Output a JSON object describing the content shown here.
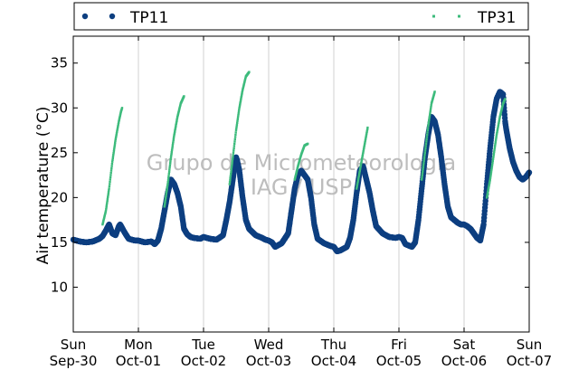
{
  "chart_data": {
    "type": "scatter",
    "title": "",
    "ylabel": "Air temperature (°C)",
    "xlabel": "",
    "xlim": [
      0,
      7
    ],
    "ylim": [
      5,
      38
    ],
    "yticks": [
      10,
      15,
      20,
      25,
      30,
      35
    ],
    "xticks": [
      {
        "x": 0,
        "day": "Sun",
        "date": "Sep-30"
      },
      {
        "x": 1,
        "day": "Mon",
        "date": "Oct-01"
      },
      {
        "x": 2,
        "day": "Tue",
        "date": "Oct-02"
      },
      {
        "x": 3,
        "day": "Wed",
        "date": "Oct-03"
      },
      {
        "x": 4,
        "day": "Thu",
        "date": "Oct-04"
      },
      {
        "x": 5,
        "day": "Fri",
        "date": "Oct-05"
      },
      {
        "x": 6,
        "day": "Sat",
        "date": "Oct-06"
      },
      {
        "x": 7,
        "day": "Sun",
        "date": "Oct-07"
      }
    ],
    "grid": "vertical",
    "legend_position": "top",
    "watermark": [
      "Grupo de Micrometeorologia",
      "IAG / USP"
    ],
    "series": [
      {
        "name": "TP11",
        "color": "#0d3f80",
        "marker": "circle",
        "points": [
          [
            0.0,
            15.3
          ],
          [
            0.1,
            15.1
          ],
          [
            0.2,
            15.0
          ],
          [
            0.3,
            15.1
          ],
          [
            0.4,
            15.4
          ],
          [
            0.45,
            15.7
          ],
          [
            0.5,
            16.3
          ],
          [
            0.55,
            17.0
          ],
          [
            0.6,
            16.0
          ],
          [
            0.65,
            15.8
          ],
          [
            0.7,
            16.8
          ],
          [
            0.72,
            17.0
          ],
          [
            0.78,
            16.2
          ],
          [
            0.85,
            15.4
          ],
          [
            0.95,
            15.2
          ],
          [
            1.0,
            15.2
          ],
          [
            1.1,
            15.0
          ],
          [
            1.2,
            15.1
          ],
          [
            1.25,
            14.8
          ],
          [
            1.3,
            15.2
          ],
          [
            1.35,
            16.5
          ],
          [
            1.4,
            18.5
          ],
          [
            1.45,
            20.5
          ],
          [
            1.5,
            22.0
          ],
          [
            1.55,
            21.5
          ],
          [
            1.6,
            20.5
          ],
          [
            1.65,
            19.0
          ],
          [
            1.7,
            16.5
          ],
          [
            1.75,
            15.9
          ],
          [
            1.8,
            15.6
          ],
          [
            1.85,
            15.5
          ],
          [
            1.95,
            15.4
          ],
          [
            2.0,
            15.6
          ],
          [
            2.1,
            15.4
          ],
          [
            2.2,
            15.3
          ],
          [
            2.3,
            15.8
          ],
          [
            2.35,
            17.5
          ],
          [
            2.4,
            19.5
          ],
          [
            2.45,
            22.0
          ],
          [
            2.5,
            24.5
          ],
          [
            2.52,
            24.0
          ],
          [
            2.55,
            23.0
          ],
          [
            2.6,
            20.0
          ],
          [
            2.65,
            17.5
          ],
          [
            2.7,
            16.5
          ],
          [
            2.8,
            15.8
          ],
          [
            2.9,
            15.5
          ],
          [
            2.95,
            15.3
          ],
          [
            3.0,
            15.2
          ],
          [
            3.05,
            15.0
          ],
          [
            3.1,
            14.5
          ],
          [
            3.2,
            14.9
          ],
          [
            3.3,
            16.0
          ],
          [
            3.35,
            18.5
          ],
          [
            3.4,
            21.0
          ],
          [
            3.45,
            22.5
          ],
          [
            3.5,
            23.0
          ],
          [
            3.55,
            22.5
          ],
          [
            3.6,
            22.0
          ],
          [
            3.65,
            20.0
          ],
          [
            3.7,
            17.0
          ],
          [
            3.75,
            15.4
          ],
          [
            3.85,
            14.9
          ],
          [
            3.95,
            14.6
          ],
          [
            4.0,
            14.5
          ],
          [
            4.05,
            14.0
          ],
          [
            4.1,
            14.1
          ],
          [
            4.2,
            14.5
          ],
          [
            4.25,
            15.5
          ],
          [
            4.3,
            17.5
          ],
          [
            4.35,
            20.5
          ],
          [
            4.4,
            23.0
          ],
          [
            4.45,
            23.5
          ],
          [
            4.5,
            22.0
          ],
          [
            4.55,
            20.5
          ],
          [
            4.6,
            18.5
          ],
          [
            4.65,
            16.8
          ],
          [
            4.75,
            16.0
          ],
          [
            4.85,
            15.6
          ],
          [
            4.95,
            15.5
          ],
          [
            5.0,
            15.6
          ],
          [
            5.05,
            15.5
          ],
          [
            5.1,
            14.8
          ],
          [
            5.2,
            14.5
          ],
          [
            5.25,
            15.0
          ],
          [
            5.3,
            17.5
          ],
          [
            5.35,
            21.0
          ],
          [
            5.4,
            24.5
          ],
          [
            5.45,
            27.0
          ],
          [
            5.5,
            29.0
          ],
          [
            5.55,
            28.5
          ],
          [
            5.6,
            27.0
          ],
          [
            5.65,
            24.5
          ],
          [
            5.7,
            21.5
          ],
          [
            5.75,
            19.0
          ],
          [
            5.8,
            17.8
          ],
          [
            5.9,
            17.2
          ],
          [
            5.95,
            17.0
          ],
          [
            6.0,
            17.0
          ],
          [
            6.05,
            16.8
          ],
          [
            6.1,
            16.5
          ],
          [
            6.2,
            15.5
          ],
          [
            6.25,
            15.2
          ],
          [
            6.3,
            17.0
          ],
          [
            6.35,
            21.5
          ],
          [
            6.4,
            25.5
          ],
          [
            6.45,
            29.0
          ],
          [
            6.5,
            31.0
          ],
          [
            6.55,
            31.8
          ],
          [
            6.6,
            31.5
          ],
          [
            6.63,
            28.5
          ],
          [
            6.65,
            27.5
          ],
          [
            6.7,
            25.5
          ],
          [
            6.75,
            24.0
          ],
          [
            6.8,
            23.0
          ],
          [
            6.85,
            22.3
          ],
          [
            6.9,
            22.0
          ],
          [
            6.95,
            22.3
          ],
          [
            7.0,
            22.8
          ]
        ]
      },
      {
        "name": "TP31",
        "color": "#3dbb7c",
        "marker": "point",
        "points": [
          [
            0.45,
            17.0
          ],
          [
            0.5,
            18.5
          ],
          [
            0.55,
            21.0
          ],
          [
            0.6,
            24.0
          ],
          [
            0.65,
            26.5
          ],
          [
            0.7,
            28.5
          ],
          [
            0.73,
            29.5
          ],
          [
            0.75,
            30.0
          ],
          [
            1.4,
            19.0
          ],
          [
            1.45,
            21.5
          ],
          [
            1.5,
            24.5
          ],
          [
            1.55,
            27.0
          ],
          [
            1.6,
            29.0
          ],
          [
            1.65,
            30.5
          ],
          [
            1.7,
            31.3
          ],
          [
            2.4,
            21.5
          ],
          [
            2.45,
            24.5
          ],
          [
            2.5,
            27.5
          ],
          [
            2.55,
            30.0
          ],
          [
            2.6,
            32.0
          ],
          [
            2.65,
            33.5
          ],
          [
            2.7,
            34.0
          ],
          [
            3.4,
            22.0
          ],
          [
            3.45,
            23.5
          ],
          [
            3.5,
            24.8
          ],
          [
            3.55,
            25.8
          ],
          [
            3.6,
            26.0
          ],
          [
            4.35,
            21.0
          ],
          [
            4.4,
            23.0
          ],
          [
            4.45,
            25.0
          ],
          [
            4.5,
            27.0
          ],
          [
            4.52,
            27.8
          ],
          [
            5.35,
            22.0
          ],
          [
            5.4,
            25.0
          ],
          [
            5.45,
            28.0
          ],
          [
            5.5,
            30.5
          ],
          [
            5.55,
            31.8
          ],
          [
            6.35,
            20.0
          ],
          [
            6.4,
            22.0
          ],
          [
            6.45,
            24.5
          ],
          [
            6.5,
            27.0
          ],
          [
            6.55,
            29.0
          ],
          [
            6.6,
            30.5
          ],
          [
            6.63,
            31.0
          ]
        ]
      }
    ]
  }
}
